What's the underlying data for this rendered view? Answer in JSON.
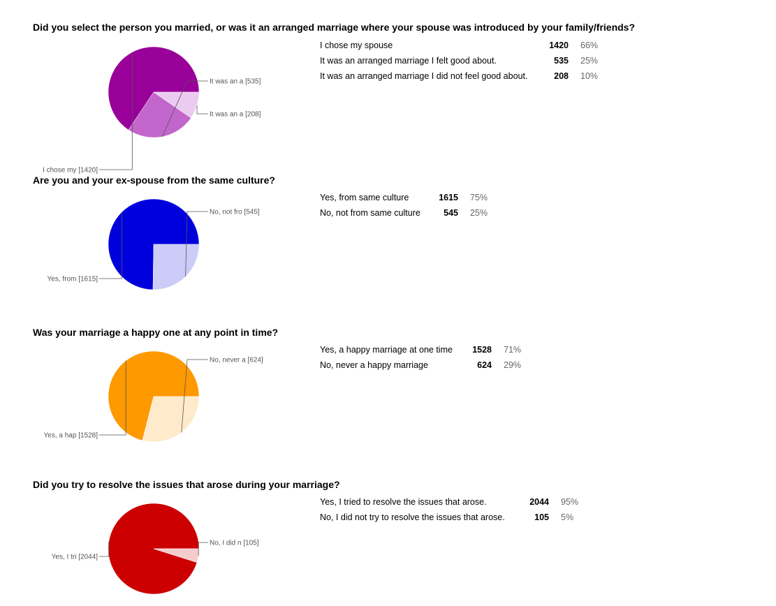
{
  "chart_data": [
    {
      "type": "pie",
      "title": "Did you select the person you married, or was it an arranged marriage where your spouse was introduced by your family/friends?",
      "slices": [
        {
          "label": "I chose my spouse",
          "short_label": "I chose my [1420]",
          "value": 1420,
          "percent": "66%",
          "color": "#990099"
        },
        {
          "label": "It was an arranged marriage I felt good about.",
          "short_label": "It was an a [535]",
          "value": 535,
          "percent": "25%",
          "color": "#c266cc"
        },
        {
          "label": "It was an arranged marriage I did not feel good about.",
          "short_label": "It was an a [208]",
          "value": 208,
          "percent": "10%",
          "color": "#ebccf0"
        }
      ]
    },
    {
      "type": "pie",
      "title": "Are you and your ex-spouse from the same culture?",
      "slices": [
        {
          "label": "Yes, from same culture",
          "short_label": "Yes, from  [1615]",
          "value": 1615,
          "percent": "75%",
          "color": "#0000dd"
        },
        {
          "label": "No, not from same culture",
          "short_label": "No, not fro [545]",
          "value": 545,
          "percent": "25%",
          "color": "#ccccf8"
        }
      ]
    },
    {
      "type": "pie",
      "title": "Was your marriage a happy one at any point in time?",
      "slices": [
        {
          "label": "Yes, a happy marriage at one time",
          "short_label": "Yes, a hap [1528]",
          "value": 1528,
          "percent": "71%",
          "color": "#ff9900"
        },
        {
          "label": "No, never a happy marriage",
          "short_label": "No, never a [624]",
          "value": 624,
          "percent": "29%",
          "color": "#ffebcc"
        }
      ]
    },
    {
      "type": "pie",
      "title": "Did you try to resolve the issues that arose during your marriage?",
      "slices": [
        {
          "label": "Yes, I tried to resolve the issues that arose.",
          "short_label": "Yes, I tri [2044]",
          "value": 2044,
          "percent": "95%",
          "color": "#cc0000"
        },
        {
          "label": "No, I did not try to resolve the issues that arose.",
          "short_label": "No, I did n [105]",
          "value": 105,
          "percent": "5%",
          "color": "#f5cccc"
        }
      ]
    }
  ]
}
